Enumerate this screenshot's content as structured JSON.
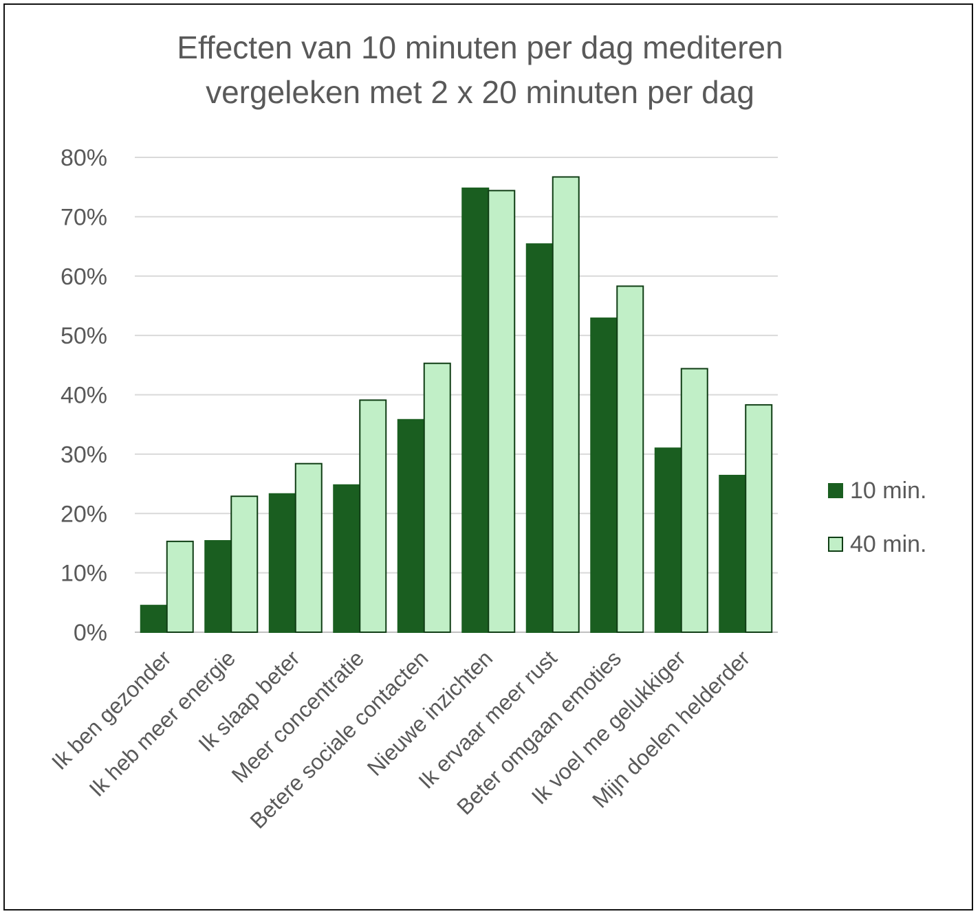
{
  "chart_data": {
    "type": "bar",
    "title": [
      "Effecten van 10 minuten per dag mediteren",
      "vergeleken met 2 x 20 minuten per dag"
    ],
    "xlabel": "",
    "ylabel": "",
    "ylim": [
      0,
      80
    ],
    "yticks": [
      0,
      10,
      20,
      30,
      40,
      50,
      60,
      70,
      80
    ],
    "ytick_labels": [
      "0%",
      "10%",
      "20%",
      "30%",
      "40%",
      "50%",
      "60%",
      "70%",
      "80%"
    ],
    "grid": true,
    "legend_position": "right",
    "categories": [
      "Ik ben gezonder",
      "Ik heb meer energie",
      "Ik slaap beter",
      "Meer concentratie",
      "Betere sociale contacten",
      "Nieuwe inzichten",
      "Ik ervaar meer rust",
      "Beter omgaan emoties",
      "Ik voel me gelukkiger",
      "Mijn doelen helderder"
    ],
    "series": [
      {
        "name": "10 min.",
        "color": "#1a5e20",
        "stroke": "#1a5e20",
        "values": [
          4.5,
          15.4,
          23.3,
          24.8,
          35.8,
          74.8,
          65.4,
          52.9,
          31.0,
          26.4
        ]
      },
      {
        "name": "40 min.",
        "color": "#c1efc7",
        "stroke": "#0f3d14",
        "values": [
          15.3,
          22.9,
          28.4,
          39.1,
          45.3,
          74.4,
          76.7,
          58.3,
          44.4,
          38.3
        ]
      }
    ]
  }
}
